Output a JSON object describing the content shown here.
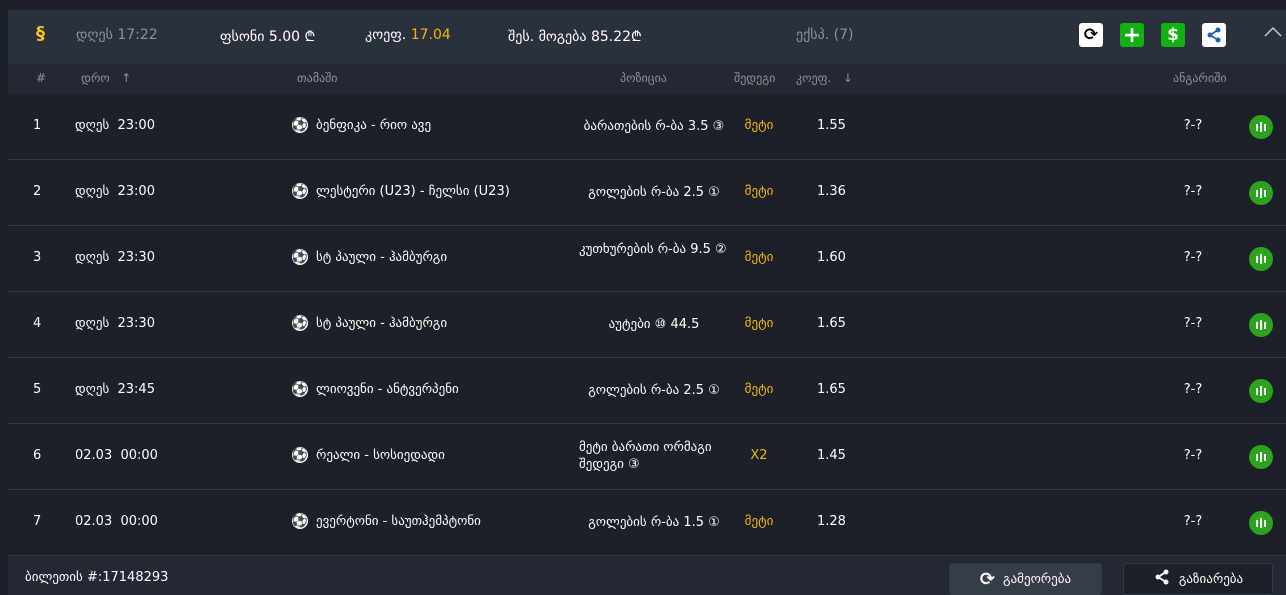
{
  "header": {
    "date_label": "დღეს",
    "time": "17:22",
    "stake_label": "ფსონი",
    "stake": "5.00 ₾",
    "coef_label": "კოეფ.",
    "coef": "17.04",
    "win_label": "შეს. მოგება",
    "win": "85.22₾",
    "type": "ექსპ. (7)"
  },
  "columns": {
    "num": "#",
    "time": "დრო",
    "game": "თამაში",
    "position": "პოზიცია",
    "result": "შედეგი",
    "coef": "კოეფ.",
    "score": "ანგარიში"
  },
  "rows": [
    {
      "num": "1",
      "time": "დღეს  23:00",
      "game": "ბენფიკა - რიო ავე",
      "position": "ბარათების რ-ბა 3.5 ③",
      "result": "მეტი",
      "coef": "1.55",
      "score": "?-?"
    },
    {
      "num": "2",
      "time": "დღეს  23:00",
      "game": "ლესტერი (U23) - ჩელსი (U23)",
      "position": "გოლების რ-ბა 2.5 ①",
      "result": "მეტი",
      "coef": "1.36",
      "score": "?-?"
    },
    {
      "num": "3",
      "time": "დღეს  23:30",
      "game": "სტ პაული - ჰამბურგი",
      "position": "კუთხურების რ-ბა 9.5 ②",
      "result": "მეტი",
      "coef": "1.60",
      "score": "?-?"
    },
    {
      "num": "4",
      "time": "დღეს  23:30",
      "game": "სტ პაული - ჰამბურგი",
      "position": "აუტები ⑩ 44.5",
      "result": "მეტი",
      "coef": "1.65",
      "score": "?-?"
    },
    {
      "num": "5",
      "time": "დღეს  23:45",
      "game": "ლიოვენი - ანტვერპენი",
      "position": "გოლების რ-ბა 2.5 ①",
      "result": "მეტი",
      "coef": "1.65",
      "score": "?-?"
    },
    {
      "num": "6",
      "time": "02.03  00:00",
      "game": "რეალი - სოსიედადი",
      "position": "მეტი ბარათი ორმაგი შედეგი ③",
      "result": "X2",
      "coef": "1.45",
      "score": "?-?"
    },
    {
      "num": "7",
      "time": "02.03  00:00",
      "game": "ევერტონი - საუთჰემპტონი",
      "position": "გოლების რ-ბა 1.5 ①",
      "result": "მეტი",
      "coef": "1.28",
      "score": "?-?"
    }
  ],
  "footer": {
    "ticket": "ბილეთის #:17148293",
    "repeat": "გამეორება",
    "share": "გაზიარება"
  },
  "colors": {
    "accent": "#f5b800",
    "green": "#2ea31f"
  }
}
